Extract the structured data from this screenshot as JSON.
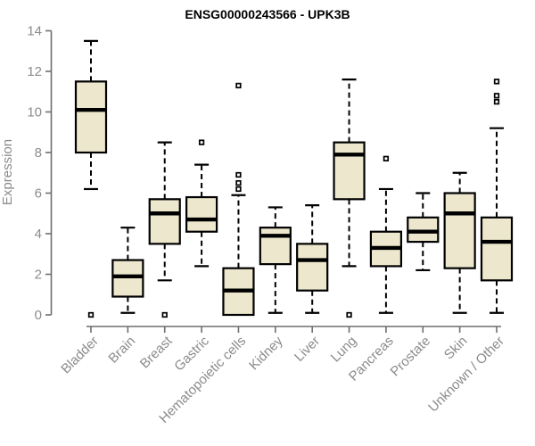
{
  "page": {
    "background": "#ffffff"
  },
  "chart_data": {
    "type": "boxplot",
    "title": "ENSG00000243566 - UPK3B",
    "ylabel": "Expression",
    "xlabel": "",
    "ylim": [
      0,
      14
    ],
    "yticks": [
      0,
      2,
      4,
      6,
      8,
      10,
      12,
      14
    ],
    "grid": false,
    "legend": "none",
    "box_fill": "#EDE8CD",
    "box_stroke": "#000000",
    "median_color": "#000000",
    "whisker_style": "dashed",
    "outlier_marker": "open-square",
    "axis_color": "#6E6E6E",
    "label_color": "#8B8B8B",
    "title_color": "#000000",
    "categories": [
      "Bladder",
      "Brain",
      "Breast",
      "Gastric",
      "Hematopoietic cells",
      "Kidney",
      "Liver",
      "Lung",
      "Pancreas",
      "Prostate",
      "Skin",
      "Unknown / Other"
    ],
    "series": [
      {
        "category": "Bladder",
        "whisker_low": 6.2,
        "q1": 8.0,
        "median": 10.1,
        "q3": 11.5,
        "whisker_high": 13.5,
        "outliers": [
          0
        ]
      },
      {
        "category": "Brain",
        "whisker_low": 0.1,
        "q1": 0.9,
        "median": 1.9,
        "q3": 2.7,
        "whisker_high": 4.3,
        "outliers": []
      },
      {
        "category": "Breast",
        "whisker_low": 1.7,
        "q1": 3.5,
        "median": 5.0,
        "q3": 5.7,
        "whisker_high": 8.5,
        "outliers": [
          0
        ]
      },
      {
        "category": "Gastric",
        "whisker_low": 2.4,
        "q1": 4.1,
        "median": 4.7,
        "q3": 5.8,
        "whisker_high": 7.4,
        "outliers": [
          8.5
        ]
      },
      {
        "category": "Hematopoietic cells",
        "whisker_low": 0.0,
        "q1": 0.0,
        "median": 1.2,
        "q3": 2.3,
        "whisker_high": 5.9,
        "outliers": [
          6.2,
          6.5,
          6.9,
          11.3
        ]
      },
      {
        "category": "Kidney",
        "whisker_low": 0.1,
        "q1": 2.5,
        "median": 3.9,
        "q3": 4.3,
        "whisker_high": 5.3,
        "outliers": []
      },
      {
        "category": "Liver",
        "whisker_low": 0.1,
        "q1": 1.2,
        "median": 2.7,
        "q3": 3.5,
        "whisker_high": 5.4,
        "outliers": []
      },
      {
        "category": "Lung",
        "whisker_low": 2.4,
        "q1": 5.7,
        "median": 7.9,
        "q3": 8.5,
        "whisker_high": 11.6,
        "outliers": [
          0
        ]
      },
      {
        "category": "Pancreas",
        "whisker_low": 0.1,
        "q1": 2.4,
        "median": 3.3,
        "q3": 4.1,
        "whisker_high": 6.2,
        "outliers": [
          7.7
        ]
      },
      {
        "category": "Prostate",
        "whisker_low": 2.2,
        "q1": 3.6,
        "median": 4.1,
        "q3": 4.8,
        "whisker_high": 6.0,
        "outliers": []
      },
      {
        "category": "Skin",
        "whisker_low": 0.1,
        "q1": 2.3,
        "median": 5.0,
        "q3": 6.0,
        "whisker_high": 7.0,
        "outliers": []
      },
      {
        "category": "Unknown / Other",
        "whisker_low": 0.1,
        "q1": 1.7,
        "median": 3.6,
        "q3": 4.8,
        "whisker_high": 9.2,
        "outliers": [
          10.5,
          10.8,
          11.5
        ]
      }
    ]
  }
}
